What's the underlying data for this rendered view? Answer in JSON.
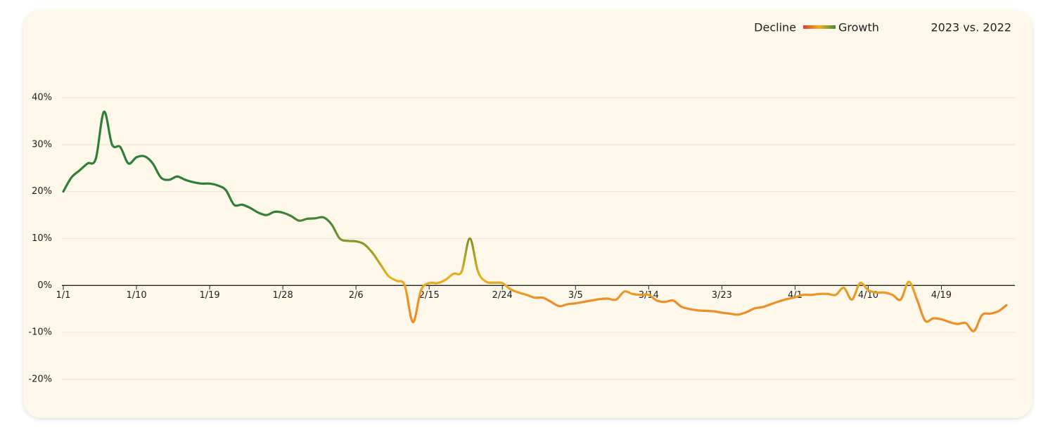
{
  "chart_data": {
    "type": "line",
    "title": "2023 vs. 2022",
    "legend": {
      "low_label": "Decline",
      "high_label": "Growth",
      "colors": [
        "#d9412b",
        "#f2b01e",
        "#3a8a3f"
      ]
    },
    "categories": [
      "1/1",
      null,
      null,
      null,
      null,
      null,
      null,
      null,
      null,
      "1/10",
      null,
      null,
      null,
      null,
      null,
      null,
      null,
      null,
      "1/19",
      null,
      null,
      null,
      null,
      null,
      null,
      null,
      null,
      "1/28",
      null,
      null,
      null,
      null,
      null,
      null,
      null,
      null,
      "2/6",
      null,
      null,
      null,
      null,
      null,
      null,
      null,
      null,
      "2/15",
      null,
      null,
      null,
      null,
      null,
      null,
      null,
      null,
      "2/24",
      null,
      null,
      null,
      null,
      null,
      null,
      null,
      null,
      "3/5",
      null,
      null,
      null,
      null,
      null,
      null,
      null,
      null,
      "3/14",
      null,
      null,
      null,
      null,
      null,
      null,
      null,
      null,
      "3/23",
      null,
      null,
      null,
      null,
      null,
      null,
      null,
      null,
      "4/1",
      null,
      null,
      null,
      null,
      null,
      null,
      null,
      null,
      "4/10",
      null,
      null,
      null,
      null,
      null,
      null,
      null,
      null,
      "4/19",
      null,
      null,
      null,
      null,
      null,
      null,
      null,
      null
    ],
    "series": [
      {
        "name": "2023 vs. 2022",
        "colors": [
          "#2f7f3a",
          "#e9b21c",
          "#ec8f2b"
        ],
        "values": [
          20,
          23,
          24.5,
          26,
          27,
          37,
          30,
          29.5,
          26,
          27.3,
          27.5,
          26,
          23,
          22.5,
          23.2,
          22.5,
          22,
          21.7,
          21.7,
          21.3,
          20.3,
          17.2,
          17.2,
          16.5,
          15.5,
          15,
          15.7,
          15.5,
          14.8,
          13.8,
          14.2,
          14.3,
          14.5,
          13,
          10,
          9.5,
          9.4,
          8.8,
          7,
          4.5,
          2,
          1,
          0,
          -7.8,
          -1,
          0.5,
          0.5,
          1.2,
          2.5,
          3,
          10,
          3,
          0.8,
          0.6,
          0.5,
          -0.8,
          -1.5,
          -2,
          -2.6,
          -2.6,
          -3.5,
          -4.4,
          -4,
          -3.8,
          -3.5,
          -3.2,
          -2.9,
          -2.8,
          -3,
          -1.3,
          -1.8,
          -2,
          -2,
          -3.2,
          -3.5,
          -3.2,
          -4.5,
          -5,
          -5.3,
          -5.4,
          -5.5,
          -5.8,
          -6,
          -6.2,
          -5.7,
          -4.9,
          -4.6,
          -4,
          -3.4,
          -2.9,
          -2.5,
          -2,
          -2,
          -1.8,
          -1.8,
          -2,
          -0.5,
          -3,
          0.5,
          -1,
          -1.5,
          -1.5,
          -2,
          -3,
          0.8,
          -3,
          -7.5,
          -7,
          -7.2,
          -7.8,
          -8.2,
          -8,
          -9.7,
          -6.3,
          -6,
          -5.5,
          -4.2
        ]
      }
    ],
    "ylim": [
      -20,
      40
    ],
    "yticks": [
      {
        "value": -20,
        "label": "-20%"
      },
      {
        "value": -10,
        "label": "-10%"
      },
      {
        "value": 0,
        "label": "0%"
      },
      {
        "value": 10,
        "label": "10%"
      },
      {
        "value": 20,
        "label": "20%"
      },
      {
        "value": 30,
        "label": "30%"
      },
      {
        "value": 40,
        "label": "40%"
      }
    ],
    "grid": true
  }
}
